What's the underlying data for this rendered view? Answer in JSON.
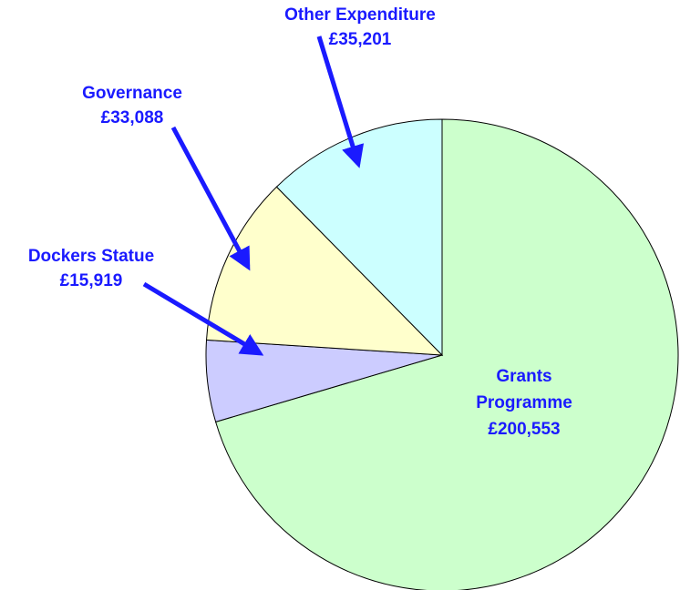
{
  "chart_data": {
    "type": "pie",
    "categories": [
      "Grants Programme",
      "Dockers Statue",
      "Governance",
      "Other Expenditure"
    ],
    "values": [
      200553,
      15919,
      33088,
      35201
    ],
    "value_labels": [
      "£200,553",
      "£15,919",
      "£33,088",
      "£35,201"
    ],
    "colors": [
      "#ccffcc",
      "#ccccff",
      "#ffffcc",
      "#ccffff"
    ]
  }
}
